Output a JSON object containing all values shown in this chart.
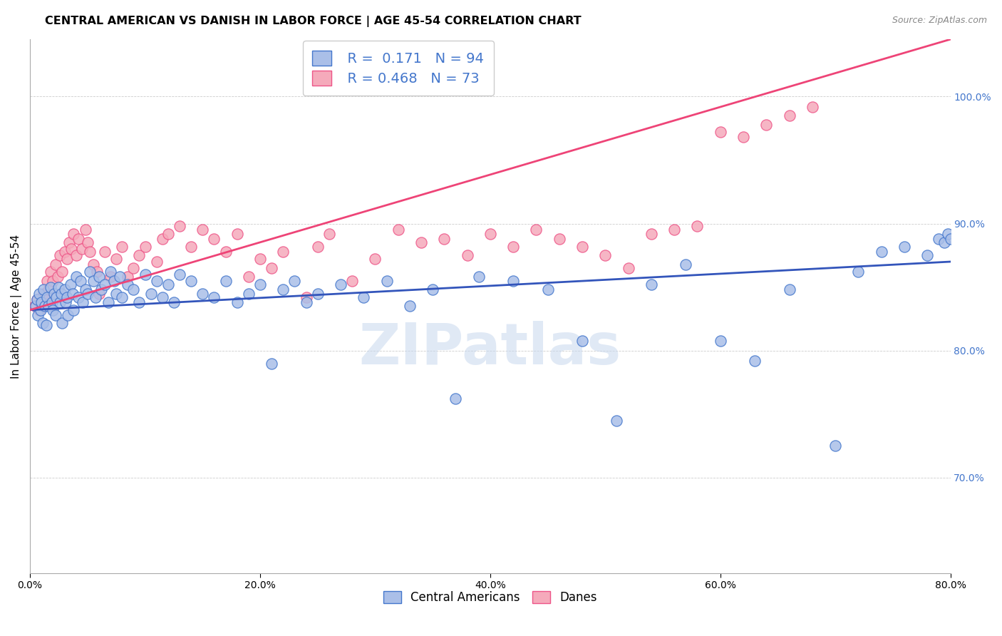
{
  "title": "CENTRAL AMERICAN VS DANISH IN LABOR FORCE | AGE 45-54 CORRELATION CHART",
  "source": "Source: ZipAtlas.com",
  "ylabel": "In Labor Force | Age 45-54",
  "xlim": [
    0.0,
    0.8
  ],
  "ylim": [
    0.625,
    1.045
  ],
  "xtick_vals": [
    0.0,
    0.2,
    0.4,
    0.6,
    0.8
  ],
  "ytick_vals": [
    0.7,
    0.8,
    0.9,
    1.0
  ],
  "blue_fill": "#AABFE8",
  "blue_edge": "#4477CC",
  "pink_fill": "#F5AABB",
  "pink_edge": "#EE5588",
  "blue_line_color": "#3355BB",
  "pink_line_color": "#EE4477",
  "r_blue": 0.171,
  "n_blue": 94,
  "r_pink": 0.468,
  "n_pink": 73,
  "watermark": "ZIPatlas",
  "legend_labels": [
    "Central Americans",
    "Danes"
  ],
  "blue_x": [
    0.005,
    0.006,
    0.007,
    0.008,
    0.009,
    0.01,
    0.011,
    0.012,
    0.013,
    0.014,
    0.015,
    0.016,
    0.018,
    0.019,
    0.02,
    0.021,
    0.022,
    0.023,
    0.025,
    0.026,
    0.027,
    0.028,
    0.03,
    0.031,
    0.032,
    0.033,
    0.035,
    0.037,
    0.038,
    0.04,
    0.042,
    0.044,
    0.046,
    0.048,
    0.05,
    0.052,
    0.055,
    0.057,
    0.06,
    0.062,
    0.065,
    0.068,
    0.07,
    0.073,
    0.075,
    0.078,
    0.08,
    0.085,
    0.09,
    0.095,
    0.1,
    0.105,
    0.11,
    0.115,
    0.12,
    0.125,
    0.13,
    0.14,
    0.15,
    0.16,
    0.17,
    0.18,
    0.19,
    0.2,
    0.21,
    0.22,
    0.23,
    0.24,
    0.25,
    0.27,
    0.29,
    0.31,
    0.33,
    0.35,
    0.37,
    0.39,
    0.42,
    0.45,
    0.48,
    0.51,
    0.54,
    0.57,
    0.6,
    0.63,
    0.66,
    0.7,
    0.72,
    0.74,
    0.76,
    0.78,
    0.79,
    0.795,
    0.798,
    0.8
  ],
  "blue_y": [
    0.835,
    0.84,
    0.828,
    0.845,
    0.832,
    0.838,
    0.822,
    0.848,
    0.835,
    0.82,
    0.842,
    0.835,
    0.85,
    0.838,
    0.832,
    0.845,
    0.828,
    0.842,
    0.85,
    0.838,
    0.845,
    0.822,
    0.848,
    0.838,
    0.842,
    0.828,
    0.852,
    0.845,
    0.832,
    0.858,
    0.842,
    0.855,
    0.838,
    0.848,
    0.845,
    0.862,
    0.855,
    0.842,
    0.858,
    0.848,
    0.852,
    0.838,
    0.862,
    0.855,
    0.845,
    0.858,
    0.842,
    0.852,
    0.848,
    0.838,
    0.86,
    0.845,
    0.855,
    0.842,
    0.852,
    0.838,
    0.86,
    0.855,
    0.845,
    0.842,
    0.855,
    0.838,
    0.845,
    0.852,
    0.79,
    0.848,
    0.855,
    0.838,
    0.845,
    0.852,
    0.842,
    0.855,
    0.835,
    0.848,
    0.762,
    0.858,
    0.855,
    0.848,
    0.808,
    0.745,
    0.852,
    0.868,
    0.808,
    0.792,
    0.848,
    0.725,
    0.862,
    0.878,
    0.882,
    0.875,
    0.888,
    0.885,
    0.892,
    0.888
  ],
  "pink_x": [
    0.004,
    0.006,
    0.008,
    0.01,
    0.012,
    0.014,
    0.015,
    0.016,
    0.018,
    0.02,
    0.022,
    0.024,
    0.026,
    0.028,
    0.03,
    0.032,
    0.034,
    0.036,
    0.038,
    0.04,
    0.042,
    0.045,
    0.048,
    0.05,
    0.052,
    0.055,
    0.058,
    0.06,
    0.065,
    0.07,
    0.075,
    0.08,
    0.085,
    0.09,
    0.095,
    0.1,
    0.11,
    0.115,
    0.12,
    0.13,
    0.14,
    0.15,
    0.16,
    0.17,
    0.18,
    0.19,
    0.2,
    0.21,
    0.22,
    0.24,
    0.25,
    0.26,
    0.28,
    0.3,
    0.32,
    0.34,
    0.36,
    0.38,
    0.4,
    0.42,
    0.44,
    0.46,
    0.48,
    0.5,
    0.52,
    0.54,
    0.56,
    0.58,
    0.6,
    0.62,
    0.64,
    0.66,
    0.68
  ],
  "pink_y": [
    0.835,
    0.84,
    0.832,
    0.838,
    0.845,
    0.842,
    0.855,
    0.848,
    0.862,
    0.855,
    0.868,
    0.858,
    0.875,
    0.862,
    0.878,
    0.872,
    0.885,
    0.88,
    0.892,
    0.875,
    0.888,
    0.88,
    0.895,
    0.885,
    0.878,
    0.868,
    0.862,
    0.845,
    0.878,
    0.858,
    0.872,
    0.882,
    0.858,
    0.865,
    0.875,
    0.882,
    0.87,
    0.888,
    0.892,
    0.898,
    0.882,
    0.895,
    0.888,
    0.878,
    0.892,
    0.858,
    0.872,
    0.865,
    0.878,
    0.842,
    0.882,
    0.892,
    0.855,
    0.872,
    0.895,
    0.885,
    0.888,
    0.875,
    0.892,
    0.882,
    0.895,
    0.888,
    0.882,
    0.875,
    0.865,
    0.892,
    0.895,
    0.898,
    0.972,
    0.968,
    0.978,
    0.985,
    0.992
  ]
}
